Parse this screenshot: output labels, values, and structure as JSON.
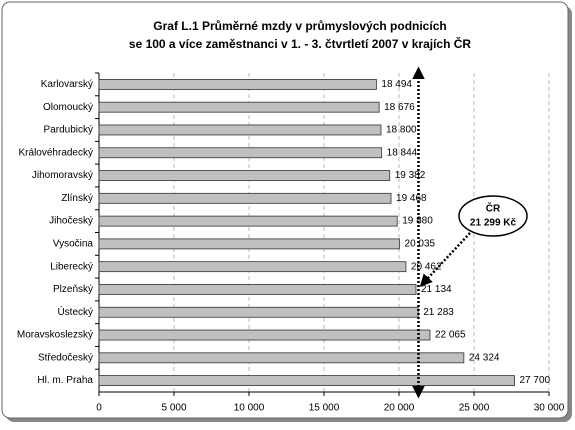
{
  "chart_data": {
    "type": "bar",
    "orientation": "horizontal",
    "title_lines": [
      "Graf L.1 Průměrné mzdy v průmyslových podnicích",
      "se 100 a více zaměstnanci v 1. - 3. čtvrtletí 2007 v krajích ČR"
    ],
    "categories": [
      "Karlovarský",
      "Olomoucký",
      "Pardubický",
      "Královéhradecký",
      "Jihomoravský",
      "Zlínský",
      "Jihočeský",
      "Vysočina",
      "Liberecký",
      "Plzeňský",
      "Ústecký",
      "Moravskoslezský",
      "Středočeský",
      "Hl. m. Praha"
    ],
    "values": [
      18494,
      18676,
      18800,
      18844,
      19382,
      19468,
      19880,
      20035,
      20462,
      21134,
      21283,
      22065,
      24324,
      27700
    ],
    "value_labels": [
      "18 494",
      "18 676",
      "18 800",
      "18 844",
      "19 382",
      "19 468",
      "19 880",
      "20 035",
      "20 462",
      "21 134",
      "21 283",
      "22 065",
      "24 324",
      "27 700"
    ],
    "color": "#c0c0c0",
    "xlim": [
      0,
      30000
    ],
    "xticks": [
      0,
      {
        "value": 5000,
        "label": "5 000"
      },
      {
        "value": 10000,
        "label": "10 000"
      },
      {
        "value": 15000,
        "label": "15 000"
      },
      {
        "value": 20000,
        "label": "20 000"
      },
      {
        "value": 25000,
        "label": "25 000"
      },
      {
        "value": 30000,
        "label": "30 000"
      }
    ],
    "grid": true,
    "reference": {
      "value": 21299,
      "label_lines": [
        "ČR",
        "21 299 Kč"
      ]
    }
  }
}
